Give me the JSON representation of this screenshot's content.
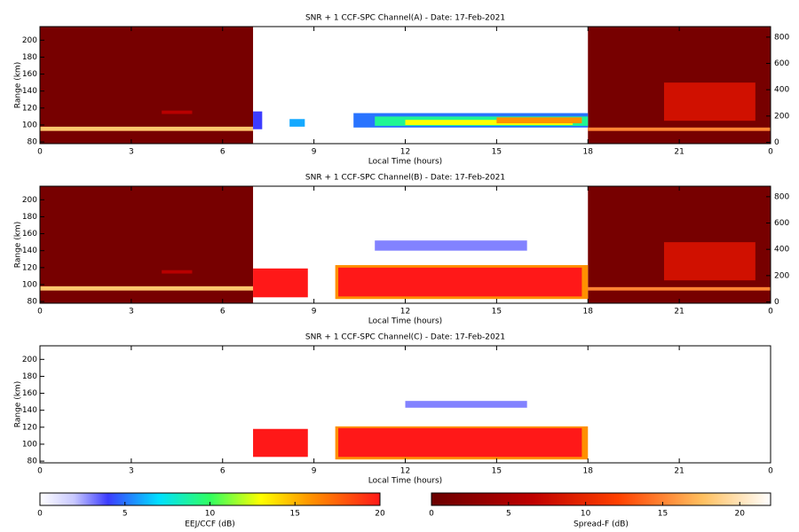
{
  "chart_data": [
    {
      "type": "heatmap",
      "title": "SNR + 1 CCF-SPC Channel(A) - Date: 17-Feb-2021",
      "x_label": "Local Time (hours)",
      "y_label": "Range (km)",
      "xlim": [
        0,
        24
      ],
      "xticks": [
        0,
        3,
        6,
        9,
        12,
        15,
        18,
        21,
        {
          "value": 24,
          "label": "0"
        }
      ],
      "ylim": [
        78,
        216
      ],
      "yticks": [
        80,
        100,
        120,
        140,
        160,
        180,
        200
      ],
      "y2lim": [
        -10,
        880
      ],
      "y2ticks": [
        0,
        200,
        400,
        600,
        800
      ],
      "spreadf_regions": [
        {
          "x": [
            0,
            7
          ],
          "y": [
            78,
            216
          ],
          "value": 1
        },
        {
          "x": [
            0,
            7
          ],
          "y": [
            93,
            98
          ],
          "value": 18
        },
        {
          "x": [
            4,
            5
          ],
          "y": [
            113,
            117
          ],
          "value": 6
        },
        {
          "x": [
            18,
            24
          ],
          "y": [
            78,
            216
          ],
          "value": 1
        },
        {
          "x": [
            18,
            24
          ],
          "y": [
            93,
            97
          ],
          "value": 15
        },
        {
          "x": [
            20.5,
            23.5
          ],
          "y": [
            105,
            150
          ],
          "value": 8
        }
      ],
      "eej_regions": [
        {
          "x": [
            7,
            7.3
          ],
          "y": [
            95,
            116
          ],
          "value": 4
        },
        {
          "x": [
            8.2,
            8.7
          ],
          "y": [
            98,
            107
          ],
          "value": 6
        },
        {
          "x": [
            10.3,
            18
          ],
          "y": [
            97,
            114
          ],
          "value": 5
        },
        {
          "x": [
            11,
            18
          ],
          "y": [
            99,
            110
          ],
          "value": 9
        },
        {
          "x": [
            12,
            17.5
          ],
          "y": [
            100,
            106
          ],
          "value": 13
        },
        {
          "x": [
            15,
            17.8
          ],
          "y": [
            102,
            109
          ],
          "value": 16
        }
      ]
    },
    {
      "type": "heatmap",
      "title": "SNR + 1 CCF-SPC Channel(B) - Date: 17-Feb-2021",
      "x_label": "Local Time (hours)",
      "y_label": "Range (km)",
      "xlim": [
        0,
        24
      ],
      "xticks": [
        0,
        3,
        6,
        9,
        12,
        15,
        18,
        21,
        {
          "value": 24,
          "label": "0"
        }
      ],
      "ylim": [
        78,
        216
      ],
      "yticks": [
        80,
        100,
        120,
        140,
        160,
        180,
        200
      ],
      "y2lim": [
        -10,
        880
      ],
      "y2ticks": [
        0,
        200,
        400,
        600,
        800
      ],
      "spreadf_regions": [
        {
          "x": [
            0,
            7
          ],
          "y": [
            78,
            216
          ],
          "value": 1
        },
        {
          "x": [
            0,
            7
          ],
          "y": [
            93,
            98
          ],
          "value": 18
        },
        {
          "x": [
            4,
            5
          ],
          "y": [
            113,
            117
          ],
          "value": 6
        },
        {
          "x": [
            18,
            24
          ],
          "y": [
            78,
            216
          ],
          "value": 1
        },
        {
          "x": [
            18,
            24
          ],
          "y": [
            93,
            97
          ],
          "value": 15
        },
        {
          "x": [
            20.5,
            23.5
          ],
          "y": [
            105,
            150
          ],
          "value": 8
        }
      ],
      "eej_regions": [
        {
          "x": [
            11,
            16
          ],
          "y": [
            140,
            152
          ],
          "value": 3
        },
        {
          "x": [
            7,
            8.8
          ],
          "y": [
            85,
            119
          ],
          "value": 20
        },
        {
          "x": [
            9.7,
            18
          ],
          "y": [
            83,
            123
          ],
          "value": 16
        },
        {
          "x": [
            9.8,
            17.8
          ],
          "y": [
            86,
            120
          ],
          "value": 20
        }
      ]
    },
    {
      "type": "heatmap",
      "title": "SNR + 1 CCF-SPC Channel(C) - Date: 17-Feb-2021",
      "x_label": "Local Time (hours)",
      "y_label": "Range (km)",
      "xlim": [
        0,
        24
      ],
      "xticks": [
        0,
        3,
        6,
        9,
        12,
        15,
        18,
        21,
        {
          "value": 24,
          "label": "0"
        }
      ],
      "ylim": [
        78,
        216
      ],
      "yticks": [
        80,
        100,
        120,
        140,
        160,
        180,
        200
      ],
      "eej_regions": [
        {
          "x": [
            12,
            16
          ],
          "y": [
            143,
            151
          ],
          "value": 3
        },
        {
          "x": [
            7,
            8.8
          ],
          "y": [
            85,
            118
          ],
          "value": 20
        },
        {
          "x": [
            9.7,
            18
          ],
          "y": [
            82,
            121
          ],
          "value": 16
        },
        {
          "x": [
            9.8,
            17.8
          ],
          "y": [
            85,
            119
          ],
          "value": 20
        }
      ]
    }
  ],
  "colorbars": [
    {
      "label": "EEJ/CCF (dB)",
      "lim": [
        0,
        20
      ],
      "ticks": [
        0,
        5,
        10,
        15,
        20
      ]
    },
    {
      "label": "Spread-F (dB)",
      "lim": [
        0,
        22
      ],
      "ticks": [
        0,
        5,
        10,
        15,
        20
      ]
    }
  ]
}
